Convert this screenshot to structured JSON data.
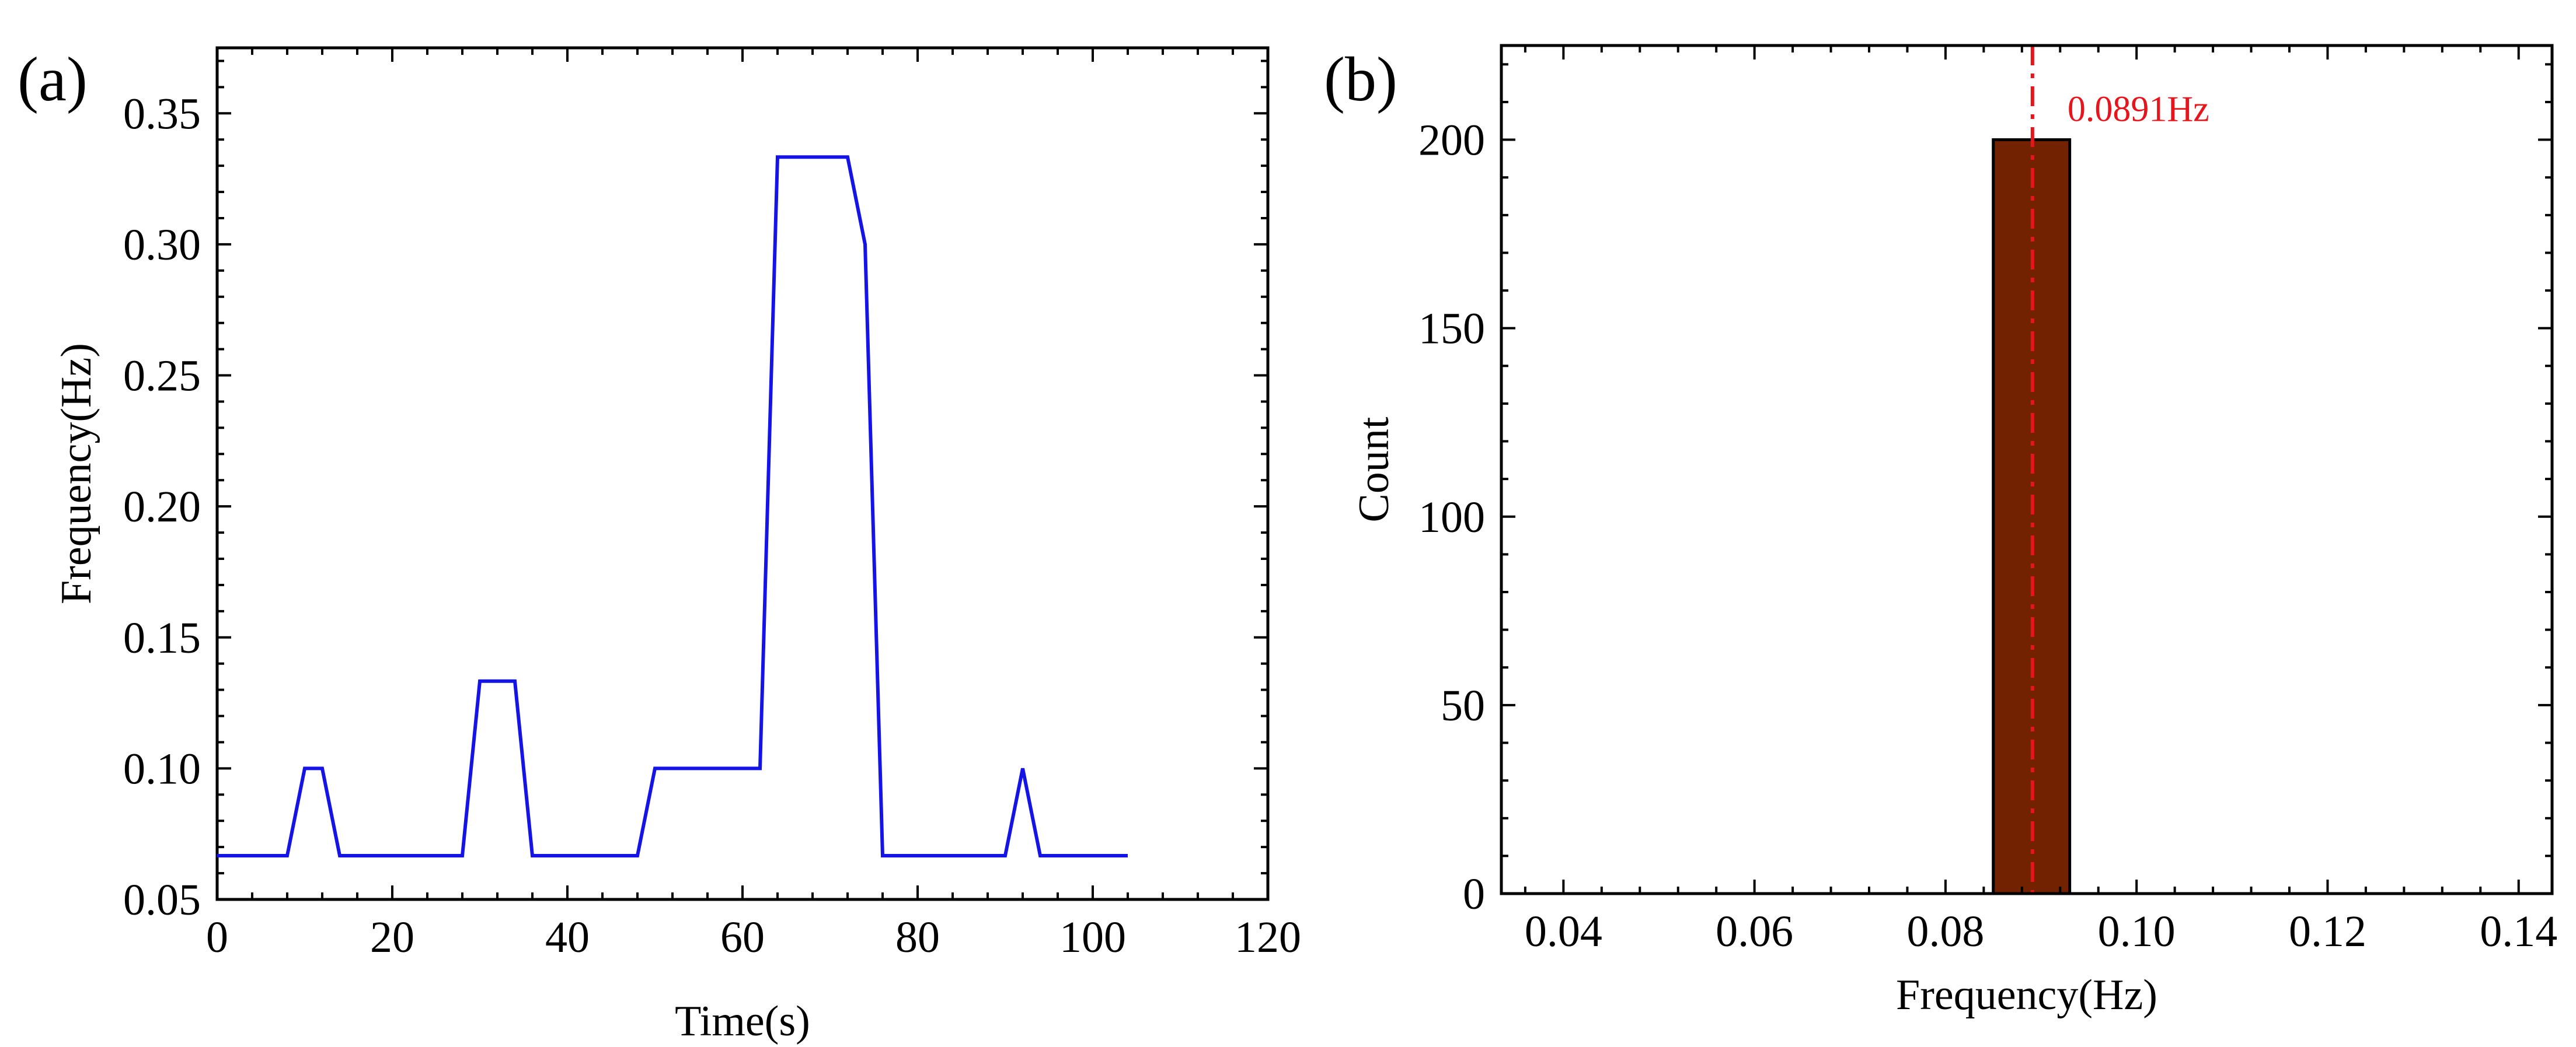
{
  "chart_data": [
    {
      "type": "line",
      "panel_label": "(a)",
      "xlabel": "Time(s)",
      "ylabel": "Frequency(Hz)",
      "xlim": [
        0,
        120
      ],
      "ylim": [
        0.05,
        0.375
      ],
      "xticks": [
        0,
        20,
        40,
        60,
        80,
        100,
        120
      ],
      "xtick_labels": [
        "0",
        "20",
        "40",
        "60",
        "80",
        "100",
        "120"
      ],
      "yticks": [
        0.05,
        0.1,
        0.15,
        0.2,
        0.25,
        0.3,
        0.35
      ],
      "ytick_labels": [
        "0.05",
        "0.10",
        "0.15",
        "0.20",
        "0.25",
        "0.30",
        "0.35"
      ],
      "grid": false,
      "line_color": "#1414e6",
      "series": [
        {
          "x": [
            0,
            8,
            10,
            12,
            14,
            28,
            30,
            34,
            36,
            48,
            50,
            62,
            64,
            72,
            74,
            76,
            90,
            92,
            94,
            104
          ],
          "y": [
            0.0667,
            0.0667,
            0.1,
            0.1,
            0.0667,
            0.0667,
            0.1333,
            0.1333,
            0.0667,
            0.0667,
            0.1,
            0.1,
            0.3333,
            0.3333,
            0.3,
            0.0667,
            0.0667,
            0.1,
            0.0667,
            0.0667
          ]
        }
      ]
    },
    {
      "type": "bar",
      "panel_label": "(b)",
      "xlabel": "Frequency(Hz)",
      "ylabel": "Count",
      "xlim": [
        0.0335,
        0.1435
      ],
      "ylim": [
        0,
        225
      ],
      "xticks": [
        0.04,
        0.06,
        0.08,
        0.1,
        0.12,
        0.14
      ],
      "xtick_labels": [
        "0.04",
        "0.06",
        "0.08",
        "0.10",
        "0.12",
        "0.14"
      ],
      "yticks": [
        0,
        50,
        100,
        150,
        200
      ],
      "ytick_labels": [
        "0",
        "50",
        "100",
        "150",
        "200"
      ],
      "grid": false,
      "bar_color": "#732200",
      "bins": [
        {
          "x0": 0.085,
          "x1": 0.093,
          "count": 200
        }
      ],
      "mean_line": {
        "x": 0.0891,
        "label": "0.0891Hz",
        "color": "#e8141b",
        "style": "dash-dot"
      }
    }
  ]
}
